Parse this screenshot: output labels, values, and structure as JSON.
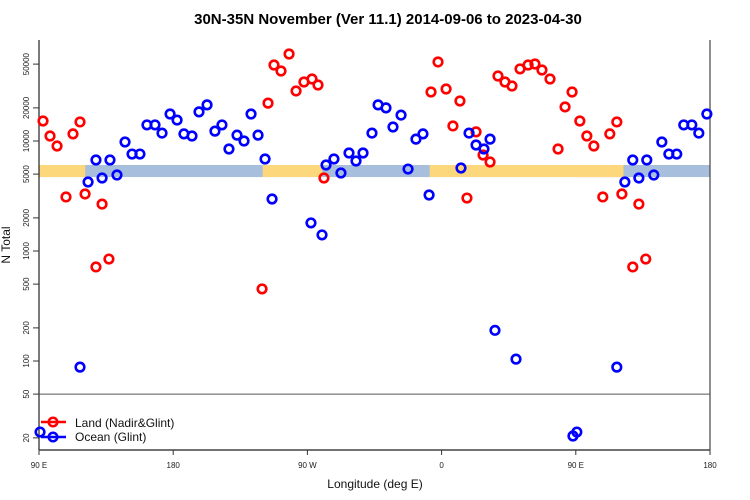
{
  "chart_data": {
    "type": "scatter",
    "title": "30N-35N November (Ver 11.1)   2014-09-06 to 2023-04-30",
    "xlabel": "Longitude (deg E)",
    "ylabel": "N Total",
    "y_scale": "log",
    "ylim": [
      15,
      83000
    ],
    "x_range_label": "90 E to 180, wrapping through 180, 90 W, 0, 90 E",
    "x_ticks": [
      {
        "lon": 90,
        "label": "90 E"
      },
      {
        "lon": 180,
        "label": "180"
      },
      {
        "lon": -90,
        "label": "90 W"
      },
      {
        "lon": 0,
        "label": "0"
      },
      {
        "lon": 90,
        "label": "90 E",
        "wrapped": true
      },
      {
        "lon": 180,
        "label": "180",
        "wrapped": true
      }
    ],
    "y_ticks": [
      50000,
      20000,
      10000,
      5000,
      2000,
      1000,
      500,
      200,
      100,
      50,
      20
    ],
    "y_tick_labels": [
      "50000",
      "20000",
      "10000",
      "5000",
      "2000",
      "1000",
      "500",
      "200",
      "100",
      "50",
      "20"
    ],
    "panel_divider_value": 50,
    "grid": false,
    "legend": {
      "placement": "bottom-left",
      "entries": [
        "Land (Nadir&Glint)",
        "Ocean (Glint)"
      ]
    },
    "colors": {
      "land": "#ff0000",
      "ocean": "#0000ff",
      "land_band": "#fdd77b",
      "ocean_band": "#a7bfdc"
    },
    "surface_band": {
      "n_range": [
        4700,
        6050
      ],
      "land_lon_ranges": [
        [
          90,
          121
        ],
        [
          -120,
          -80
        ],
        [
          -8,
          122
        ]
      ]
    },
    "series": [
      {
        "name": "Land (Nadir&Glint)",
        "color": "#ff0000",
        "points": [
          [
            92.7,
            15200
          ],
          [
            97.4,
            11100
          ],
          [
            102.1,
            9000
          ],
          [
            108.1,
            3100
          ],
          [
            112.8,
            11600
          ],
          [
            117.5,
            14900
          ],
          [
            120.9,
            3300
          ],
          [
            128.2,
            716
          ],
          [
            132.3,
            2670
          ],
          [
            136.9,
            845
          ],
          [
            -120.4,
            452
          ],
          [
            -116.4,
            22100
          ],
          [
            -112.4,
            49100
          ],
          [
            -107.7,
            43300
          ],
          [
            -102.3,
            61800
          ],
          [
            -97.6,
            28500
          ],
          [
            -92.3,
            34400
          ],
          [
            -86.9,
            36600
          ],
          [
            -82.9,
            32300
          ],
          [
            -78.9,
            4610
          ],
          [
            -7.1,
            27900
          ],
          [
            -2.4,
            52300
          ],
          [
            3.0,
            29700
          ],
          [
            7.6,
            13700
          ],
          [
            12.3,
            23100
          ],
          [
            17.0,
            3030
          ],
          [
            23.1,
            12100
          ],
          [
            27.8,
            7460
          ],
          [
            32.5,
            6440
          ],
          [
            37.8,
            39000
          ],
          [
            42.5,
            34400
          ],
          [
            47.2,
            31600
          ],
          [
            52.6,
            45200
          ],
          [
            58.0,
            49100
          ],
          [
            62.6,
            50100
          ],
          [
            67.3,
            44200
          ],
          [
            72.7,
            36600
          ],
          [
            78.1,
            8460
          ],
          [
            82.8,
            20400
          ],
          [
            87.5,
            27900
          ]
        ]
      },
      {
        "name": "Ocean (Glint)",
        "color": "#0000ff",
        "points": [
          [
            90.7,
            22.6
          ],
          [
            117.5,
            88
          ],
          [
            122.9,
            4240
          ],
          [
            128.2,
            6720
          ],
          [
            132.3,
            4610
          ],
          [
            137.6,
            6720
          ],
          [
            142.3,
            4910
          ],
          [
            147.7,
            9790
          ],
          [
            152.4,
            7610
          ],
          [
            157.7,
            7610
          ],
          [
            162.4,
            14000
          ],
          [
            167.8,
            14000
          ],
          [
            172.5,
            11800
          ],
          [
            177.9,
            17600
          ],
          [
            -177.4,
            15500
          ],
          [
            -172.8,
            11600
          ],
          [
            -167.4,
            11100
          ],
          [
            -162.7,
            18400
          ],
          [
            -157.3,
            21300
          ],
          [
            -152.0,
            12300
          ],
          [
            -147.3,
            14000
          ],
          [
            -142.6,
            8460
          ],
          [
            -137.2,
            11300
          ],
          [
            -132.5,
            10000
          ],
          [
            -127.8,
            17600
          ],
          [
            -123.1,
            11300
          ],
          [
            -118.4,
            6860
          ],
          [
            -113.7,
            2970
          ],
          [
            -87.6,
            1800
          ],
          [
            -80.2,
            1400
          ],
          [
            -77.5,
            6050
          ],
          [
            -72.2,
            6860
          ],
          [
            -67.5,
            5120
          ],
          [
            -62.1,
            7780
          ],
          [
            -57.4,
            6580
          ],
          [
            -52.7,
            7780
          ],
          [
            -46.7,
            11800
          ],
          [
            -42.6,
            21300
          ],
          [
            -37.3,
            20000
          ],
          [
            -32.6,
            13400
          ],
          [
            -27.2,
            17200
          ],
          [
            -22.5,
            5560
          ],
          [
            -17.2,
            10400
          ],
          [
            -12.5,
            11600
          ],
          [
            -8.4,
            3230
          ],
          [
            13.0,
            5680
          ],
          [
            18.4,
            11800
          ],
          [
            23.1,
            9200
          ],
          [
            28.4,
            8460
          ],
          [
            32.5,
            10400
          ],
          [
            35.8,
            190
          ],
          [
            49.9,
            104
          ],
          [
            88.1,
            20.8
          ]
        ]
      }
    ]
  }
}
